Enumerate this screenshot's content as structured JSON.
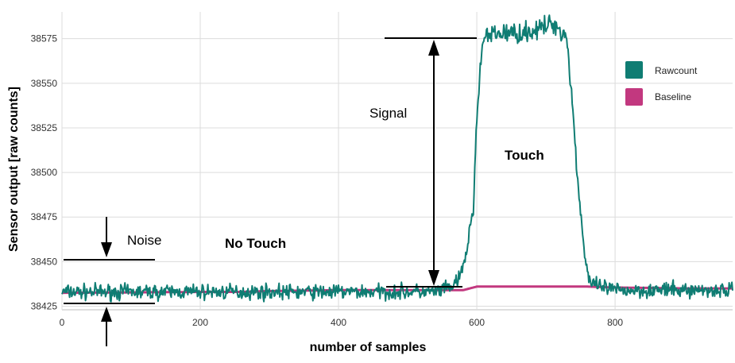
{
  "chart_data": {
    "type": "line",
    "title": "",
    "xlabel": "number of samples",
    "ylabel": "Sensor output [raw counts]",
    "xlim": [
      0,
      970
    ],
    "ylim": [
      38423,
      38590
    ],
    "x_ticks": [
      0,
      200,
      400,
      600,
      800
    ],
    "y_ticks": [
      38425,
      38450,
      38475,
      38500,
      38525,
      38550,
      38575
    ],
    "grid": true,
    "legend_position": "top-right",
    "colors": {
      "Rawcount": "#0f7d73",
      "Baseline": "#c2387f"
    },
    "series": [
      {
        "name": "Rawcount",
        "x": [
          0,
          50,
          100,
          150,
          200,
          250,
          300,
          350,
          400,
          450,
          500,
          540,
          560,
          575,
          585,
          590,
          595,
          600,
          605,
          610,
          630,
          660,
          690,
          710,
          730,
          738,
          745,
          752,
          758,
          765,
          800,
          850,
          900,
          970
        ],
        "y": [
          38433,
          38433,
          38433,
          38433,
          38433,
          38433,
          38433,
          38433,
          38433,
          38433,
          38433,
          38433,
          38435,
          38440,
          38455,
          38468,
          38480,
          38530,
          38560,
          38575,
          38578,
          38578,
          38580,
          38584,
          38576,
          38540,
          38500,
          38470,
          38448,
          38437,
          38434,
          38434,
          38434,
          38434
        ]
      },
      {
        "name": "Baseline",
        "x": [
          0,
          200,
          260,
          300,
          400,
          500,
          580,
          590,
          600,
          700,
          755,
          760,
          800,
          900,
          970
        ],
        "y": [
          38432.5,
          38433,
          38433,
          38433.5,
          38434,
          38434,
          38434,
          38435,
          38436,
          38436,
          38436,
          38436,
          38435.5,
          38435,
          38435
        ]
      }
    ],
    "annotations": {
      "noise": "Noise",
      "no_touch": "No Touch",
      "signal": "Signal",
      "touch": "Touch"
    }
  }
}
